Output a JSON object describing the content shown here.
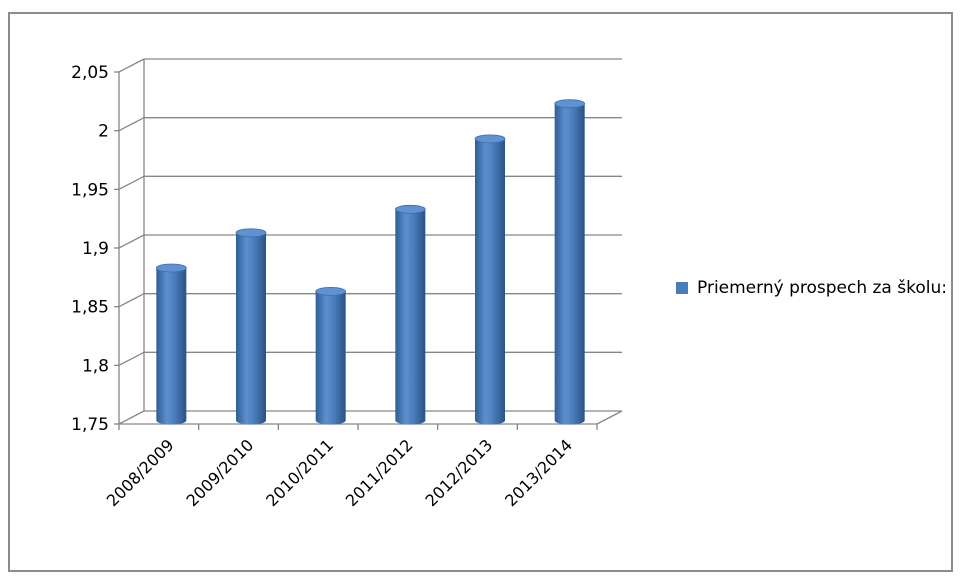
{
  "chart_data": {
    "type": "bar",
    "categories": [
      "2008/2009",
      "2009/2010",
      "2010/2011",
      "2011/2012",
      "2012/2013",
      "2013/2014"
    ],
    "series": [
      {
        "name": "Priemerný prospech za školu:",
        "values": [
          1.88,
          1.91,
          1.86,
          1.93,
          1.99,
          2.02
        ]
      }
    ],
    "yticks": [
      "1,75",
      "1,8",
      "1,85",
      "1,9",
      "1,95",
      "2",
      "2,05"
    ],
    "ylim": [
      1.75,
      2.05
    ],
    "grid": true,
    "legend_position": "right",
    "style": "3d-cylinder",
    "bar_color": "#4a7ebb"
  }
}
